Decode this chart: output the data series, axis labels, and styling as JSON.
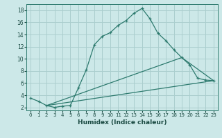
{
  "xlabel": "Humidex (Indice chaleur)",
  "bg_color": "#cce8e8",
  "grid_color": "#aacece",
  "line_color": "#2d7a6e",
  "xlim": [
    -0.5,
    23.5
  ],
  "ylim": [
    1.5,
    19.0
  ],
  "yticks": [
    2,
    4,
    6,
    8,
    10,
    12,
    14,
    16,
    18
  ],
  "xticks": [
    0,
    1,
    2,
    3,
    4,
    5,
    6,
    7,
    8,
    9,
    10,
    11,
    12,
    13,
    14,
    15,
    16,
    17,
    18,
    19,
    20,
    21,
    22,
    23
  ],
  "curve1_x": [
    0,
    1,
    2,
    3,
    4,
    5,
    6,
    7,
    8,
    9,
    10,
    11,
    12,
    13,
    14,
    15,
    16,
    17,
    18,
    19,
    20,
    21,
    22,
    23
  ],
  "curve1_y": [
    3.5,
    3.0,
    2.3,
    2.0,
    2.2,
    2.3,
    5.2,
    8.2,
    12.3,
    13.7,
    14.3,
    15.5,
    16.3,
    17.5,
    18.3,
    16.6,
    14.2,
    13.0,
    11.5,
    10.2,
    9.0,
    6.8,
    6.5,
    6.4
  ],
  "curve2_x": [
    2,
    23
  ],
  "curve2_y": [
    2.3,
    6.4
  ],
  "curve3_x": [
    2,
    19,
    23
  ],
  "curve3_y": [
    2.3,
    10.2,
    6.4
  ]
}
